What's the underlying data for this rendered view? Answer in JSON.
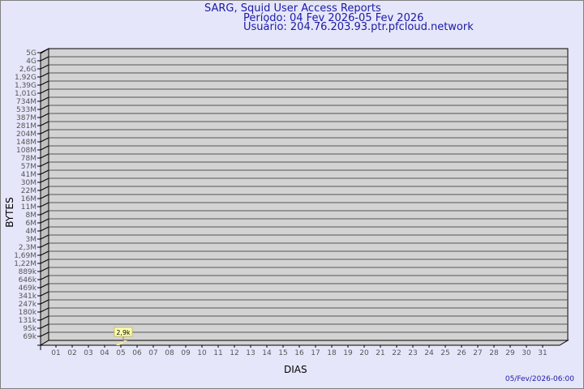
{
  "chart_data": {
    "type": "bar",
    "title": "SARG, Squid User Access Reports",
    "subtitle_period": "Período: 04 Fev 2026-05 Fev 2026",
    "subtitle_user": "Usuário: 204.76.203.93.ptr.pfcloud.network",
    "xlabel": "DIAS",
    "ylabel": "BYTES",
    "y_scale": "log",
    "y_ticks": [
      "5G",
      "4G",
      "2,6G",
      "1,92G",
      "1,39G",
      "1,01G",
      "734M",
      "533M",
      "387M",
      "281M",
      "204M",
      "148M",
      "108M",
      "78M",
      "57M",
      "41M",
      "30M",
      "22M",
      "16M",
      "11M",
      "8M",
      "6M",
      "4M",
      "3M",
      "2,3M",
      "1,69M",
      "1,22M",
      "889k",
      "646k",
      "469k",
      "341k",
      "247k",
      "180k",
      "131k",
      "95k",
      "69k"
    ],
    "categories": [
      "01",
      "02",
      "03",
      "04",
      "05",
      "06",
      "07",
      "08",
      "09",
      "10",
      "11",
      "12",
      "13",
      "14",
      "15",
      "16",
      "17",
      "18",
      "19",
      "20",
      "21",
      "22",
      "23",
      "24",
      "25",
      "26",
      "27",
      "28",
      "29",
      "30",
      "31"
    ],
    "series": [
      {
        "values": [
          null,
          null,
          null,
          null,
          2900,
          null,
          null,
          null,
          null,
          null,
          null,
          null,
          null,
          null,
          null,
          null,
          null,
          null,
          null,
          null,
          null,
          null,
          null,
          null,
          null,
          null,
          null,
          null,
          null,
          null,
          null
        ]
      }
    ],
    "data_labels": [
      {
        "category": "05",
        "text": "2,9k"
      }
    ],
    "grid": true,
    "colors": {
      "title": "#1a1aa6",
      "plot_bg": "#d3d3d3",
      "bar": "#fff0a0",
      "label_bg": "#ffffb0",
      "background": "#e6e6fa"
    }
  },
  "footer": {
    "timestamp": "05/Fev/2026-06:00"
  }
}
